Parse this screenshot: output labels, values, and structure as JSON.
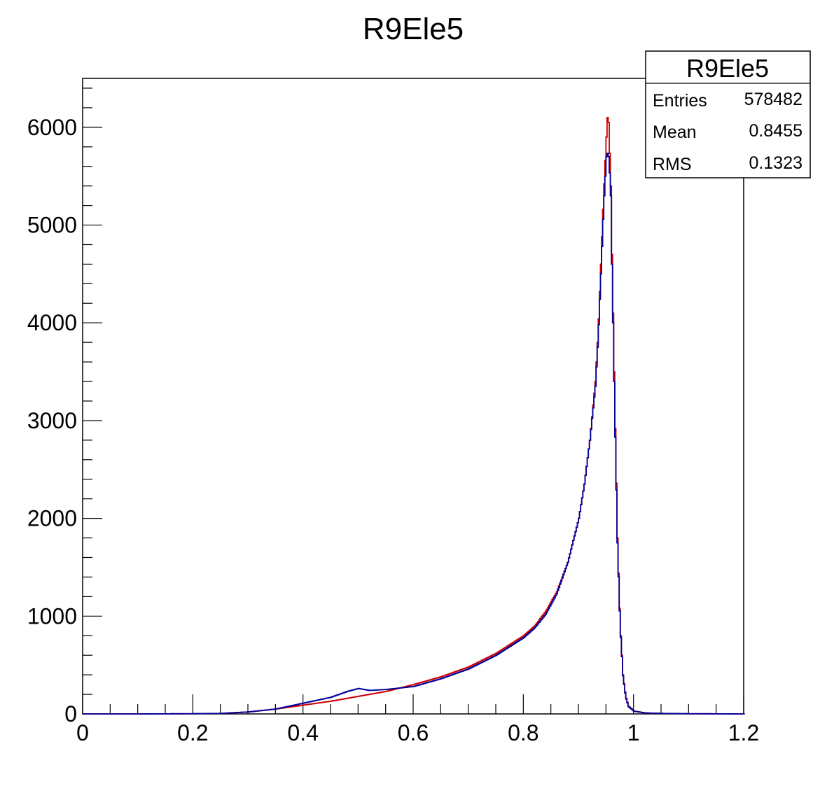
{
  "chart_data": {
    "type": "line",
    "title": "R9Ele5",
    "xlabel": "",
    "ylabel": "",
    "xlim": [
      0,
      1.2
    ],
    "ylim": [
      0,
      6500
    ],
    "x_ticks": [
      "0",
      "0.2",
      "0.4",
      "0.6",
      "0.8",
      "1",
      "1.2"
    ],
    "x_tick_values": [
      0,
      0.2,
      0.4,
      0.6,
      0.8,
      1.0,
      1.2
    ],
    "y_ticks": [
      "0",
      "1000",
      "2000",
      "3000",
      "4000",
      "5000",
      "6000"
    ],
    "y_tick_values": [
      0,
      1000,
      2000,
      3000,
      4000,
      5000,
      6000
    ],
    "grid": false,
    "legend": "none",
    "stats_box": {
      "title": "R9Ele5",
      "rows": [
        {
          "label": "Entries",
          "value": "578482"
        },
        {
          "label": "Mean",
          "value": "0.8455"
        },
        {
          "label": "RMS",
          "value": "0.1323"
        }
      ],
      "placement": "top-right"
    },
    "series": [
      {
        "color": "#cc0000",
        "x": [
          0.0,
          0.1,
          0.2,
          0.25,
          0.3,
          0.35,
          0.4,
          0.45,
          0.5,
          0.55,
          0.6,
          0.65,
          0.7,
          0.75,
          0.8,
          0.82,
          0.84,
          0.86,
          0.88,
          0.9,
          0.91,
          0.92,
          0.93,
          0.935,
          0.94,
          0.945,
          0.95,
          0.953,
          0.955,
          0.958,
          0.96,
          0.965,
          0.97,
          0.975,
          0.98,
          0.985,
          0.99,
          1.0,
          1.02,
          1.05,
          1.1,
          1.2
        ],
        "y": [
          0,
          0,
          2,
          5,
          20,
          50,
          90,
          130,
          180,
          230,
          300,
          380,
          480,
          620,
          800,
          900,
          1050,
          1250,
          1550,
          2000,
          2350,
          2800,
          3400,
          3900,
          4600,
          5300,
          5900,
          6200,
          5900,
          5400,
          4700,
          3200,
          1800,
          900,
          400,
          180,
          80,
          30,
          10,
          5,
          2,
          0
        ]
      },
      {
        "color": "#000099",
        "x": [
          0.0,
          0.1,
          0.2,
          0.25,
          0.3,
          0.35,
          0.4,
          0.45,
          0.48,
          0.5,
          0.52,
          0.55,
          0.6,
          0.65,
          0.7,
          0.75,
          0.8,
          0.82,
          0.84,
          0.86,
          0.88,
          0.9,
          0.91,
          0.92,
          0.93,
          0.935,
          0.94,
          0.945,
          0.95,
          0.953,
          0.955,
          0.958,
          0.96,
          0.965,
          0.97,
          0.975,
          0.98,
          0.985,
          0.99,
          1.0,
          1.02,
          1.05,
          1.1,
          1.2
        ],
        "y": [
          0,
          0,
          2,
          5,
          20,
          50,
          110,
          170,
          230,
          260,
          240,
          250,
          280,
          360,
          460,
          600,
          780,
          880,
          1020,
          1230,
          1550,
          2000,
          2350,
          2800,
          3350,
          3850,
          4500,
          5200,
          5700,
          5750,
          5650,
          5300,
          4600,
          3100,
          1750,
          880,
          390,
          170,
          75,
          28,
          10,
          5,
          2,
          0
        ]
      }
    ]
  }
}
